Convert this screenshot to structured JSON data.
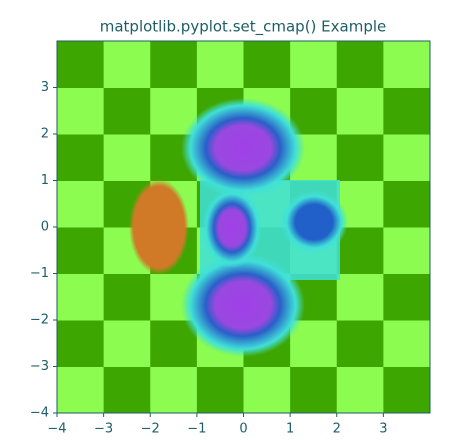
{
  "chart_data": {
    "type": "image",
    "title": "matplotlib.pyplot.set_cmap() Example",
    "xlim": [
      -4,
      4
    ],
    "ylim": [
      -4,
      4
    ],
    "xticks": [
      {
        "value": -4,
        "label": "−4"
      },
      {
        "value": -3,
        "label": "−3"
      },
      {
        "value": -2,
        "label": "−2"
      },
      {
        "value": -1,
        "label": "−1"
      },
      0,
      1,
      2,
      3
    ],
    "yticks": [
      {
        "value": -4,
        "label": "−4"
      },
      {
        "value": -3,
        "label": "−3"
      },
      {
        "value": -2,
        "label": "−2"
      },
      {
        "value": -1,
        "label": "−1"
      },
      0,
      1,
      2,
      3
    ],
    "colors": [
      "#3ea600",
      "#8cfc50"
    ]
  }
}
